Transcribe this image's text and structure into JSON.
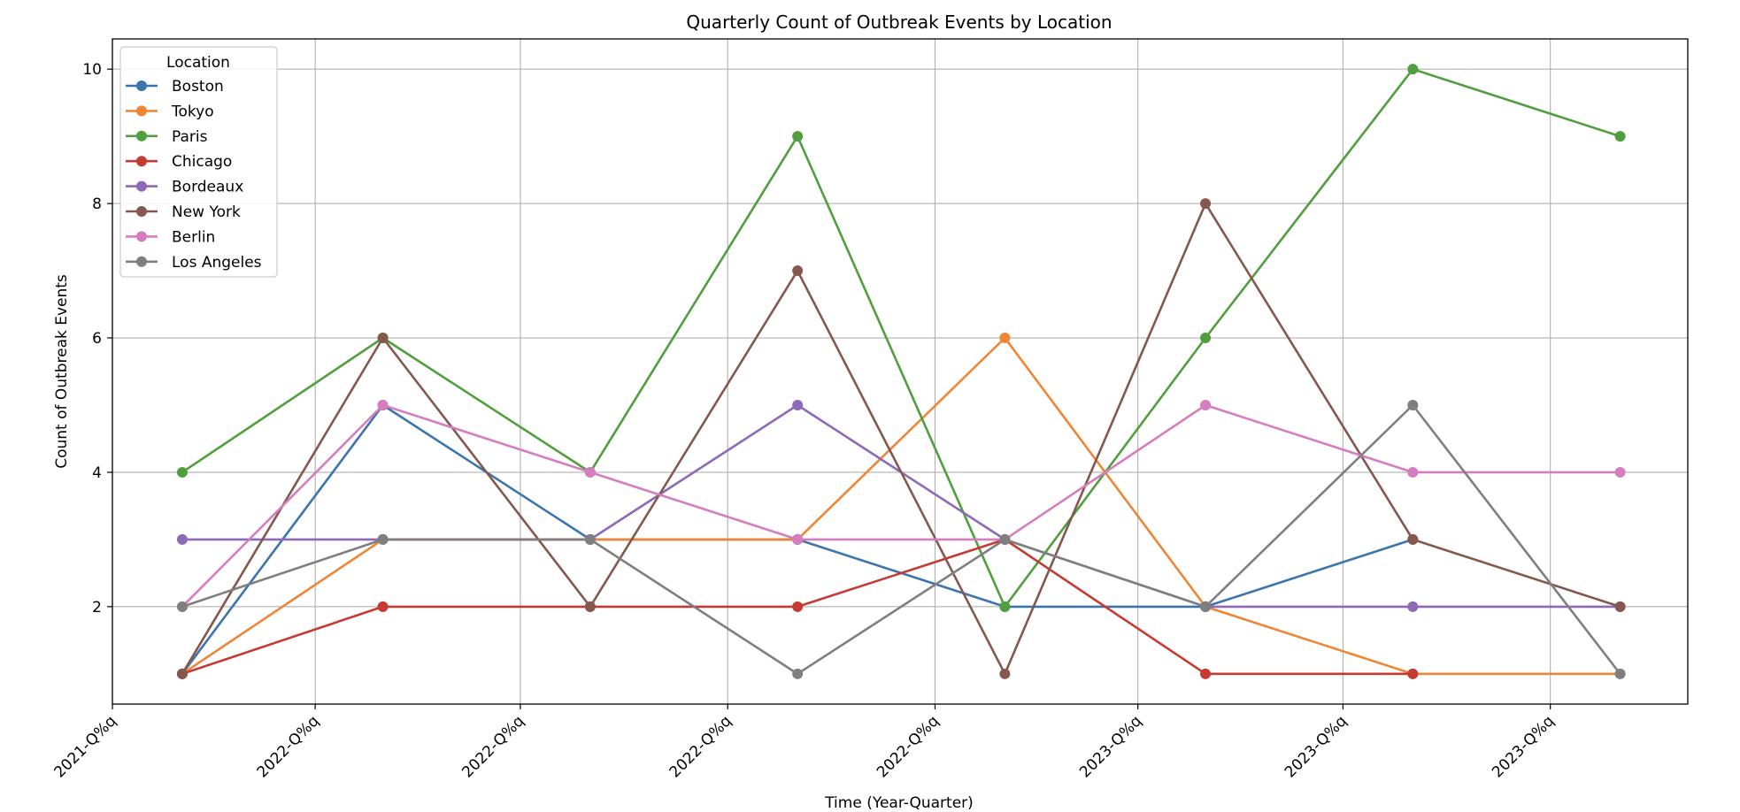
{
  "chart_data": {
    "type": "line",
    "title": "Quarterly Count of Outbreak Events by Location",
    "xlabel": "Time (Year-Quarter)",
    "ylabel": "Count of Outbreak Events",
    "ylim": [
      0.55,
      10.45
    ],
    "yticks": [
      2,
      4,
      6,
      8,
      10
    ],
    "x_tick_labels": [
      "2021-Q%q",
      "2022-Q%q",
      "2022-Q%q",
      "2022-Q%q",
      "2022-Q%q",
      "2023-Q%q",
      "2023-Q%q",
      "2023-Q%q"
    ],
    "x_tick_dates": [
      "2021-12-31",
      "2022-03-31",
      "2022-06-30",
      "2022-09-30",
      "2022-12-31",
      "2023-03-31",
      "2023-06-30",
      "2023-09-30"
    ],
    "x": [
      "2022-01-31",
      "2022-04-30",
      "2022-07-31",
      "2022-10-31",
      "2023-01-31",
      "2023-04-30",
      "2023-07-31",
      "2023-10-31"
    ],
    "xlim": [
      "2021-12-31",
      "2023-11-30"
    ],
    "grid": true,
    "legend": {
      "title": "Location",
      "placement": "top-left"
    },
    "series": [
      {
        "name": "Boston",
        "color": "#3b75af",
        "values": [
          1,
          5,
          3,
          3,
          2,
          2,
          3,
          null
        ]
      },
      {
        "name": "Tokyo",
        "color": "#ef8636",
        "values": [
          1,
          3,
          3,
          3,
          6,
          2,
          1,
          1
        ]
      },
      {
        "name": "Paris",
        "color": "#519e3e",
        "values": [
          4,
          6,
          4,
          9,
          2,
          6,
          10,
          9
        ]
      },
      {
        "name": "Chicago",
        "color": "#c53a32",
        "values": [
          1,
          2,
          2,
          2,
          3,
          1,
          1,
          null
        ]
      },
      {
        "name": "Bordeaux",
        "color": "#8d69b8",
        "values": [
          3,
          3,
          3,
          5,
          3,
          2,
          2,
          2
        ]
      },
      {
        "name": "New York",
        "color": "#84584e",
        "values": [
          1,
          6,
          2,
          7,
          1,
          8,
          3,
          2
        ]
      },
      {
        "name": "Berlin",
        "color": "#d57dbf",
        "values": [
          2,
          5,
          4,
          3,
          3,
          5,
          4,
          4
        ]
      },
      {
        "name": "Los Angeles",
        "color": "#7f7f7f",
        "values": [
          2,
          3,
          3,
          1,
          3,
          2,
          5,
          1
        ]
      }
    ]
  }
}
